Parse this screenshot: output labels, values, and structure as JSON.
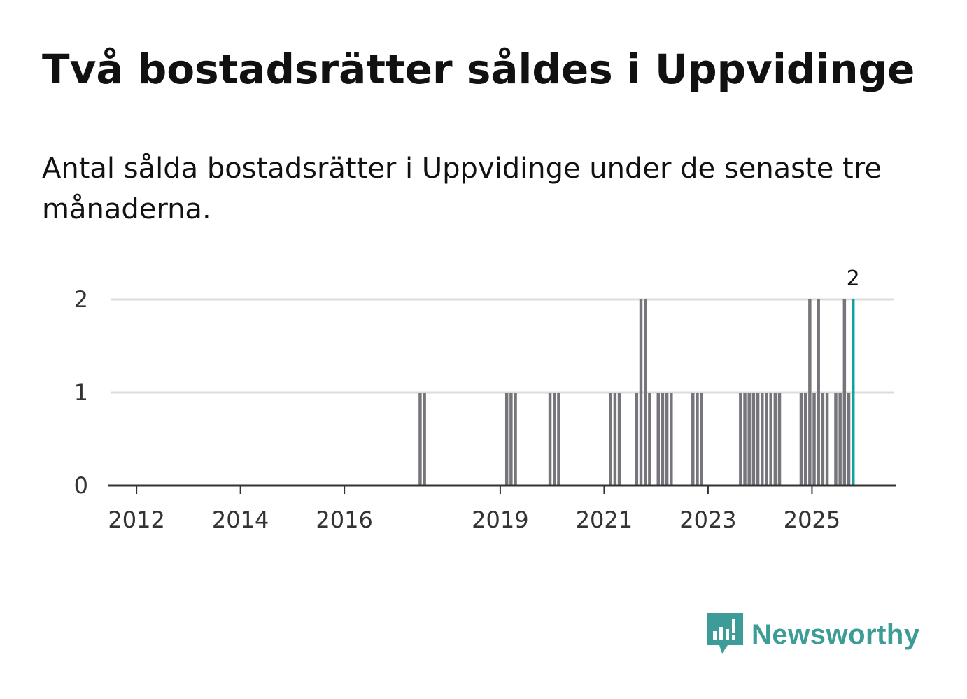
{
  "header": {
    "title": "Två bostadsrätter såldes i Uppvidinge",
    "subtitle": "Antal sålda bostadsrätter i Uppvidinge under de senaste tre månaderna."
  },
  "brand": {
    "name": "Newsworthy",
    "color": "#3d9c97"
  },
  "colors": {
    "bar": "#75757b",
    "highlight": "#12a0a0",
    "grid": "#dcdcdc",
    "axis": "#333333"
  },
  "chart_data": {
    "type": "bar",
    "title": "Två bostadsrätter såldes i Uppvidinge",
    "xlabel": "",
    "ylabel": "",
    "x_unit": "month",
    "xlim": [
      "2011-07",
      "2026-08"
    ],
    "ylim": [
      0,
      2
    ],
    "y_ticks": [
      "0",
      "1",
      "2"
    ],
    "x_ticks": [
      {
        "label": "2012",
        "date": "2012-01"
      },
      {
        "label": "2014",
        "date": "2014-01"
      },
      {
        "label": "2016",
        "date": "2016-01"
      },
      {
        "label": "2019",
        "date": "2019-01"
      },
      {
        "label": "2021",
        "date": "2021-01"
      },
      {
        "label": "2023",
        "date": "2023-01"
      },
      {
        "label": "2025",
        "date": "2025-01"
      }
    ],
    "bars": [
      {
        "date": "2017-06",
        "value": 1
      },
      {
        "date": "2017-07",
        "value": 1
      },
      {
        "date": "2019-02",
        "value": 1
      },
      {
        "date": "2019-03",
        "value": 1
      },
      {
        "date": "2019-04",
        "value": 1
      },
      {
        "date": "2019-12",
        "value": 1
      },
      {
        "date": "2020-01",
        "value": 1
      },
      {
        "date": "2020-02",
        "value": 1
      },
      {
        "date": "2021-02",
        "value": 1
      },
      {
        "date": "2021-03",
        "value": 1
      },
      {
        "date": "2021-04",
        "value": 1
      },
      {
        "date": "2021-08",
        "value": 1
      },
      {
        "date": "2021-09",
        "value": 2
      },
      {
        "date": "2021-10",
        "value": 2
      },
      {
        "date": "2021-11",
        "value": 1
      },
      {
        "date": "2022-01",
        "value": 1
      },
      {
        "date": "2022-02",
        "value": 1
      },
      {
        "date": "2022-03",
        "value": 1
      },
      {
        "date": "2022-04",
        "value": 1
      },
      {
        "date": "2022-09",
        "value": 1
      },
      {
        "date": "2022-10",
        "value": 1
      },
      {
        "date": "2022-11",
        "value": 1
      },
      {
        "date": "2023-08",
        "value": 1
      },
      {
        "date": "2023-09",
        "value": 1
      },
      {
        "date": "2023-10",
        "value": 1
      },
      {
        "date": "2023-11",
        "value": 1
      },
      {
        "date": "2023-12",
        "value": 1
      },
      {
        "date": "2024-01",
        "value": 1
      },
      {
        "date": "2024-02",
        "value": 1
      },
      {
        "date": "2024-03",
        "value": 1
      },
      {
        "date": "2024-04",
        "value": 1
      },
      {
        "date": "2024-05",
        "value": 1
      },
      {
        "date": "2024-10",
        "value": 1
      },
      {
        "date": "2024-11",
        "value": 1
      },
      {
        "date": "2024-12",
        "value": 2
      },
      {
        "date": "2025-01",
        "value": 1
      },
      {
        "date": "2025-02",
        "value": 2
      },
      {
        "date": "2025-03",
        "value": 1
      },
      {
        "date": "2025-04",
        "value": 1
      },
      {
        "date": "2025-06",
        "value": 1
      },
      {
        "date": "2025-07",
        "value": 1
      },
      {
        "date": "2025-08",
        "value": 2
      },
      {
        "date": "2025-09",
        "value": 1
      },
      {
        "date": "2025-10",
        "value": 2,
        "highlight": true
      }
    ],
    "annotations": [
      {
        "date": "2025-10",
        "text": "2"
      }
    ]
  }
}
